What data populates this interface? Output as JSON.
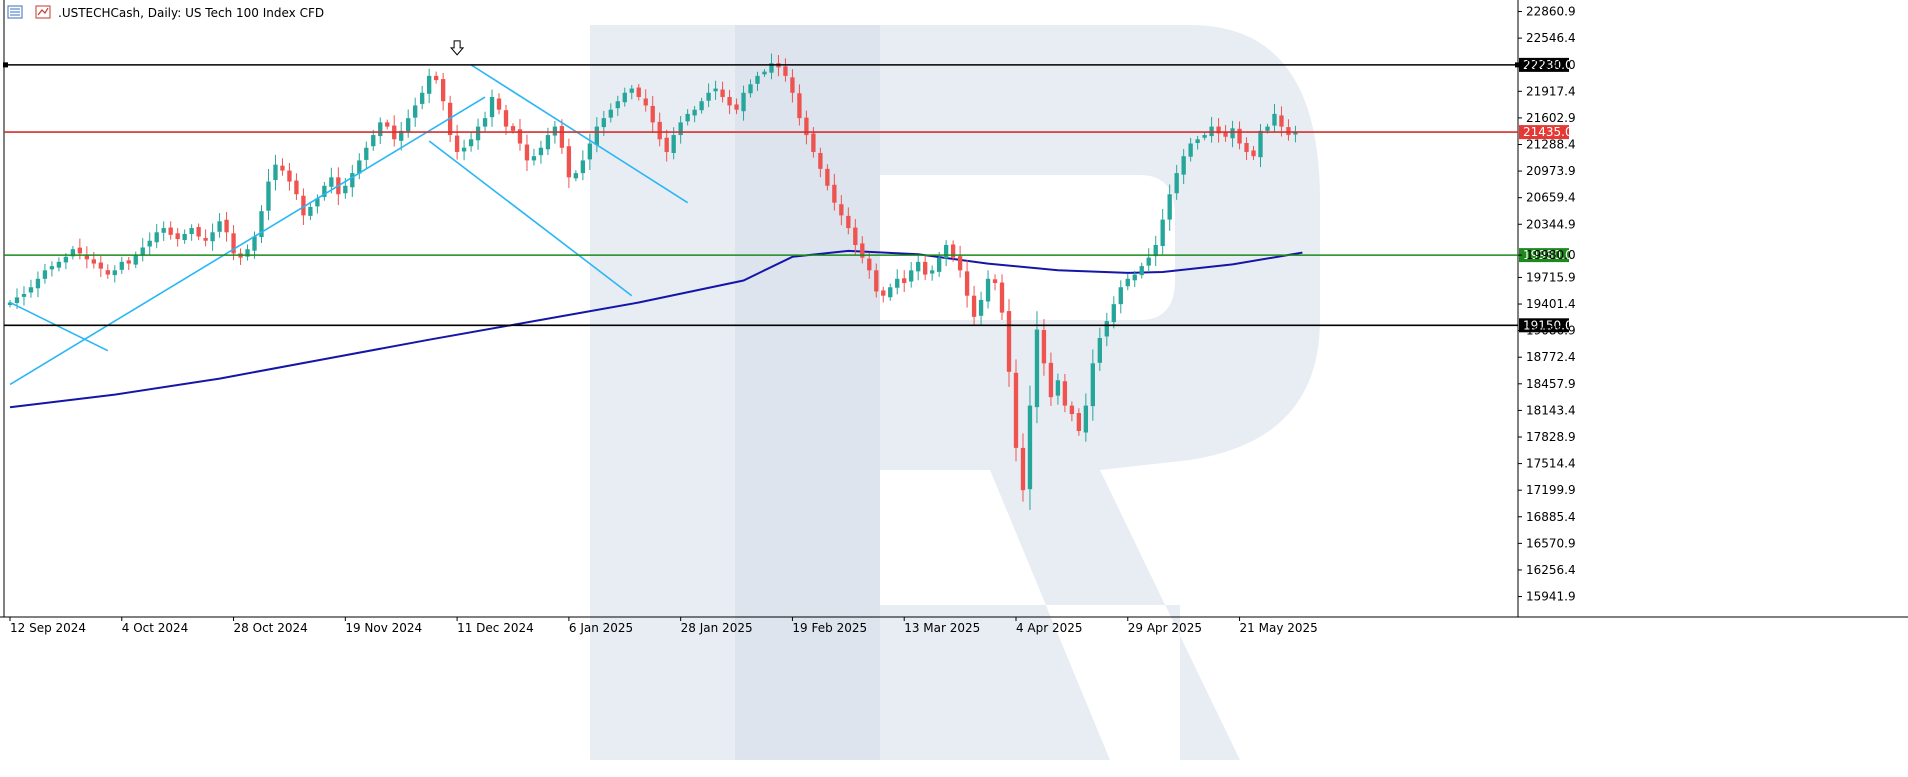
{
  "window": {
    "symbol": ".USTECHCash",
    "timeframe": "Daily",
    "description": "US Tech 100 Index CFD",
    "title_separator": ": "
  },
  "colors": {
    "background": "#ffffff",
    "bull": "#26a69a",
    "bear": "#ef5350",
    "ma_line": "#1515a8",
    "trendline": "#29b6f6",
    "resistance_high": "#000000",
    "resistance_mid": "#d32f2f",
    "support_green": "#1b8a1b",
    "support_low": "#000000",
    "watermark": "#e8edf4"
  },
  "icons": [
    "chart-type-icon",
    "indicator-icon",
    "peak-arrow-icon"
  ],
  "chart_data": {
    "type": "candlestick",
    "title": ".USTECHCash, Daily:  US Tech 100 Index CFD",
    "ylim": [
      15700,
      22950
    ],
    "y_ticks": [
      "22860.9",
      "22546.4",
      "22230.0",
      "21917.4",
      "21602.9",
      "21288.4",
      "20973.9",
      "20659.4",
      "20344.9",
      "19980.0",
      "19715.9",
      "19401.4",
      "19086.9",
      "18772.4",
      "18457.9",
      "18143.4",
      "17828.9",
      "17514.4",
      "17199.9",
      "16885.4",
      "16570.9",
      "16256.4",
      "15941.9"
    ],
    "y_tick_values": [
      22860.9,
      22546.4,
      22230.0,
      21917.4,
      21602.9,
      21288.4,
      20973.9,
      20659.4,
      20344.9,
      19980.0,
      19715.9,
      19401.4,
      19086.9,
      18772.4,
      18457.9,
      18143.4,
      17828.9,
      17514.4,
      17199.9,
      16885.4,
      16570.9,
      16256.4,
      15941.9
    ],
    "x_labels": [
      {
        "label": "12 Sep 2024",
        "index": 0
      },
      {
        "label": "4 Oct 2024",
        "index": 16
      },
      {
        "label": "28 Oct 2024",
        "index": 32
      },
      {
        "label": "19 Nov 2024",
        "index": 48
      },
      {
        "label": "11 Dec 2024",
        "index": 64
      },
      {
        "label": "6 Jan 2025",
        "index": 80
      },
      {
        "label": "28 Jan 2025",
        "index": 96
      },
      {
        "label": "19 Feb 2025",
        "index": 112
      },
      {
        "label": "13 Mar 2025",
        "index": 128
      },
      {
        "label": "4 Apr 2025",
        "index": 144
      },
      {
        "label": "29 Apr 2025",
        "index": 160
      },
      {
        "label": "21 May 2025",
        "index": 176
      }
    ],
    "levels": [
      {
        "name": "level-22230",
        "value": 22230.0,
        "label": "22230.0",
        "color": "#000000",
        "label_bg": "#000000"
      },
      {
        "name": "level-21435",
        "value": 21435.0,
        "label": "21435.0",
        "color": "#d32f2f",
        "label_bg": "#e53935"
      },
      {
        "name": "level-19980",
        "value": 19980.0,
        "label": "19980.0",
        "color": "#1b8a1b",
        "label_bg": "#1b8a1b"
      },
      {
        "name": "level-19150",
        "value": 19150.0,
        "label": "19150.0",
        "color": "#000000",
        "label_bg": "#000000"
      }
    ],
    "closes": [
      19420,
      19480,
      19520,
      19600,
      19700,
      19800,
      19850,
      19900,
      19960,
      20050,
      20000,
      19930,
      19880,
      19820,
      19750,
      19800,
      19900,
      19880,
      19980,
      20070,
      20150,
      20250,
      20300,
      20220,
      20170,
      20230,
      20300,
      20200,
      20150,
      20250,
      20380,
      20250,
      20000,
      19950,
      20050,
      20200,
      20500,
      20850,
      21050,
      20980,
      20850,
      20700,
      20450,
      20550,
      20650,
      20800,
      20900,
      20700,
      20800,
      20950,
      21100,
      21250,
      21400,
      21550,
      21500,
      21350,
      21450,
      21600,
      21750,
      21900,
      22100,
      22050,
      21800,
      21400,
      21200,
      21250,
      21350,
      21500,
      21600,
      21850,
      21700,
      21500,
      21450,
      21300,
      21100,
      21150,
      21250,
      21400,
      21500,
      21250,
      20900,
      20950,
      21100,
      21300,
      21500,
      21600,
      21700,
      21800,
      21900,
      21950,
      21850,
      21750,
      21550,
      21350,
      21200,
      21400,
      21550,
      21650,
      21700,
      21800,
      21900,
      21950,
      21850,
      21750,
      21700,
      21900,
      22000,
      22100,
      22150,
      22250,
      22200,
      22100,
      21900,
      21600,
      21400,
      21200,
      21000,
      20800,
      20600,
      20450,
      20300,
      20100,
      19950,
      19800,
      19550,
      19500,
      19600,
      19700,
      19650,
      19800,
      19900,
      19750,
      19800,
      19950,
      20100,
      19950,
      19800,
      19500,
      19250,
      19450,
      19700,
      19650,
      19300,
      18600,
      17700,
      17200,
      18200,
      19100,
      18700,
      18300,
      18500,
      18200,
      18100,
      17900,
      18200,
      18700,
      19000,
      19200,
      19400,
      19600,
      19700,
      19750,
      19850,
      19950,
      20100,
      20400,
      20700,
      20950,
      21150,
      21300,
      21350,
      21400,
      21500,
      21420,
      21380,
      21480,
      21300,
      21200,
      21150,
      21450,
      21500,
      21650,
      21500,
      21400,
      21435
    ],
    "ma_period": 200,
    "ma": [
      [
        0,
        18180
      ],
      [
        15,
        18330
      ],
      [
        30,
        18520
      ],
      [
        45,
        18750
      ],
      [
        60,
        18980
      ],
      [
        75,
        19200
      ],
      [
        90,
        19420
      ],
      [
        105,
        19680
      ],
      [
        112,
        19960
      ],
      [
        120,
        20030
      ],
      [
        130,
        19990
      ],
      [
        140,
        19880
      ],
      [
        150,
        19800
      ],
      [
        160,
        19770
      ],
      [
        165,
        19780
      ],
      [
        175,
        19870
      ],
      [
        185,
        20010
      ]
    ],
    "trendlines": [
      {
        "name": "trendline-uptrend",
        "from": [
          0,
          18450
        ],
        "to": [
          68,
          21850
        ]
      },
      {
        "name": "trendline-upper-channel",
        "from": [
          66,
          22230
        ],
        "to": [
          97,
          20600
        ]
      },
      {
        "name": "trendline-lower-channel",
        "from": [
          60,
          21330
        ],
        "to": [
          89,
          19500
        ]
      },
      {
        "name": "trendline-early",
        "from": [
          0,
          19420
        ],
        "to": [
          14,
          18850
        ]
      }
    ],
    "peak_marker_index": 64,
    "xlim_index": [
      0,
      215
    ]
  }
}
